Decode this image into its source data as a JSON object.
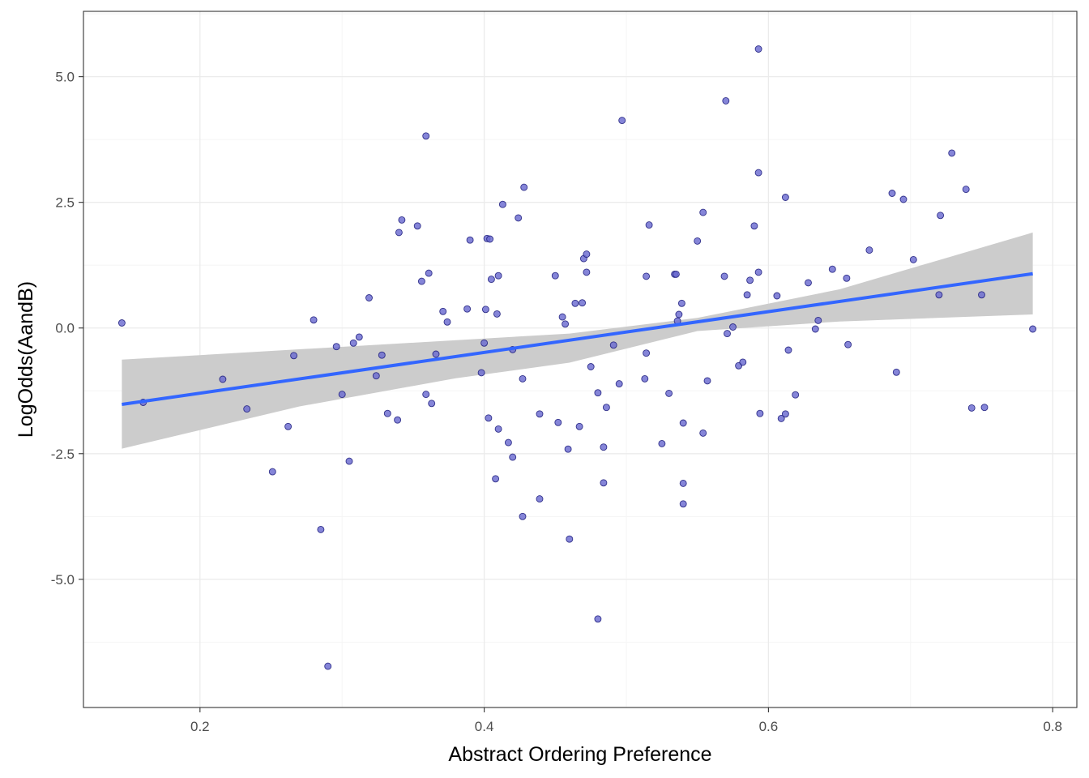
{
  "colors": {
    "background": "#ffffff",
    "panel_border": "#333333",
    "grid_major": "#ebebeb",
    "grid_minor": "#f5f5f5",
    "point_fill": "#6a6acf",
    "point_stroke": "#1a1a7a",
    "fit_line": "#3366ff",
    "ci_band": "#cccccc"
  },
  "chart_data": {
    "type": "scatter",
    "title": "",
    "xlabel": "Abstract Ordering Preference",
    "ylabel": "LogOdds(AandB)",
    "xlim": [
      0.118,
      0.817
    ],
    "ylim": [
      -7.55,
      6.3
    ],
    "x_ticks": [
      0.2,
      0.4,
      0.6,
      0.8
    ],
    "x_tick_labels": [
      "0.2",
      "0.4",
      "0.6",
      "0.8"
    ],
    "y_ticks": [
      -5.0,
      -2.5,
      0.0,
      2.5,
      5.0
    ],
    "y_tick_labels": [
      "-5.0",
      "-2.5",
      "0.0",
      "2.5",
      "5.0"
    ],
    "grid": true,
    "legend": "none",
    "smooth": {
      "method": "lm",
      "line": [
        [
          0.145,
          -1.52
        ],
        [
          0.786,
          1.08
        ]
      ],
      "ci_upper": [
        [
          0.145,
          -0.63
        ],
        [
          0.46,
          -0.11
        ],
        [
          0.55,
          0.2
        ],
        [
          0.65,
          0.77
        ],
        [
          0.786,
          1.9
        ]
      ],
      "ci_lower": [
        [
          0.145,
          -2.4
        ],
        [
          0.27,
          -1.56
        ],
        [
          0.38,
          -1.0
        ],
        [
          0.46,
          -0.69
        ],
        [
          0.55,
          -0.06
        ],
        [
          0.65,
          0.13
        ],
        [
          0.786,
          0.27
        ]
      ]
    },
    "points": [
      [
        0.145,
        0.1
      ],
      [
        0.16,
        -1.48
      ],
      [
        0.216,
        -1.02
      ],
      [
        0.233,
        -1.61
      ],
      [
        0.251,
        -2.86
      ],
      [
        0.262,
        -1.96
      ],
      [
        0.266,
        -0.55
      ],
      [
        0.28,
        0.16
      ],
      [
        0.285,
        -4.01
      ],
      [
        0.29,
        -6.73
      ],
      [
        0.296,
        -0.37
      ],
      [
        0.3,
        -1.32
      ],
      [
        0.305,
        -2.65
      ],
      [
        0.308,
        -0.3
      ],
      [
        0.312,
        -0.18
      ],
      [
        0.319,
        0.6
      ],
      [
        0.324,
        -0.95
      ],
      [
        0.328,
        -0.54
      ],
      [
        0.332,
        -1.7
      ],
      [
        0.339,
        -1.83
      ],
      [
        0.34,
        1.9
      ],
      [
        0.342,
        2.15
      ],
      [
        0.353,
        2.03
      ],
      [
        0.356,
        0.93
      ],
      [
        0.359,
        3.82
      ],
      [
        0.359,
        -1.32
      ],
      [
        0.361,
        1.09
      ],
      [
        0.363,
        -1.5
      ],
      [
        0.366,
        -0.52
      ],
      [
        0.371,
        0.33
      ],
      [
        0.374,
        0.12
      ],
      [
        0.388,
        0.38
      ],
      [
        0.39,
        1.75
      ],
      [
        0.398,
        -0.89
      ],
      [
        0.4,
        -0.3
      ],
      [
        0.401,
        0.37
      ],
      [
        0.402,
        1.78
      ],
      [
        0.403,
        -1.79
      ],
      [
        0.404,
        1.77
      ],
      [
        0.405,
        0.97
      ],
      [
        0.408,
        -3.0
      ],
      [
        0.409,
        0.28
      ],
      [
        0.41,
        1.04
      ],
      [
        0.41,
        -2.01
      ],
      [
        0.413,
        2.46
      ],
      [
        0.417,
        -2.28
      ],
      [
        0.42,
        -2.57
      ],
      [
        0.42,
        -0.43
      ],
      [
        0.424,
        2.19
      ],
      [
        0.427,
        -1.01
      ],
      [
        0.427,
        -3.75
      ],
      [
        0.428,
        2.8
      ],
      [
        0.439,
        -1.71
      ],
      [
        0.439,
        -3.4
      ],
      [
        0.45,
        1.04
      ],
      [
        0.452,
        -1.88
      ],
      [
        0.455,
        0.22
      ],
      [
        0.457,
        0.08
      ],
      [
        0.459,
        -2.41
      ],
      [
        0.46,
        -4.2
      ],
      [
        0.464,
        0.49
      ],
      [
        0.467,
        -1.96
      ],
      [
        0.469,
        0.5
      ],
      [
        0.47,
        1.38
      ],
      [
        0.472,
        1.47
      ],
      [
        0.472,
        1.11
      ],
      [
        0.475,
        -0.77
      ],
      [
        0.48,
        -1.29
      ],
      [
        0.48,
        -5.79
      ],
      [
        0.484,
        -2.37
      ],
      [
        0.484,
        -3.08
      ],
      [
        0.486,
        -1.58
      ],
      [
        0.491,
        -0.34
      ],
      [
        0.495,
        -1.11
      ],
      [
        0.497,
        4.13
      ],
      [
        0.513,
        -1.01
      ],
      [
        0.514,
        -0.5
      ],
      [
        0.514,
        1.03
      ],
      [
        0.516,
        2.05
      ],
      [
        0.525,
        -2.3
      ],
      [
        0.53,
        -1.3
      ],
      [
        0.534,
        1.07
      ],
      [
        0.535,
        1.07
      ],
      [
        0.536,
        0.14
      ],
      [
        0.537,
        0.27
      ],
      [
        0.539,
        0.49
      ],
      [
        0.54,
        -1.89
      ],
      [
        0.54,
        -3.09
      ],
      [
        0.54,
        -3.5
      ],
      [
        0.55,
        1.73
      ],
      [
        0.554,
        2.3
      ],
      [
        0.554,
        -2.09
      ],
      [
        0.557,
        -1.05
      ],
      [
        0.569,
        1.03
      ],
      [
        0.57,
        4.52
      ],
      [
        0.571,
        -0.11
      ],
      [
        0.575,
        0.02
      ],
      [
        0.579,
        -0.75
      ],
      [
        0.582,
        -0.68
      ],
      [
        0.585,
        0.66
      ],
      [
        0.587,
        0.95
      ],
      [
        0.59,
        2.03
      ],
      [
        0.593,
        5.55
      ],
      [
        0.593,
        1.11
      ],
      [
        0.593,
        3.09
      ],
      [
        0.594,
        -1.7
      ],
      [
        0.606,
        0.64
      ],
      [
        0.609,
        -1.8
      ],
      [
        0.612,
        -1.71
      ],
      [
        0.612,
        2.6
      ],
      [
        0.614,
        -0.44
      ],
      [
        0.619,
        -1.33
      ],
      [
        0.628,
        0.9
      ],
      [
        0.633,
        -0.02
      ],
      [
        0.635,
        0.15
      ],
      [
        0.645,
        1.17
      ],
      [
        0.655,
        0.99
      ],
      [
        0.656,
        -0.33
      ],
      [
        0.671,
        1.55
      ],
      [
        0.687,
        2.68
      ],
      [
        0.69,
        -0.88
      ],
      [
        0.695,
        2.56
      ],
      [
        0.702,
        1.36
      ],
      [
        0.72,
        0.66
      ],
      [
        0.721,
        2.24
      ],
      [
        0.729,
        3.48
      ],
      [
        0.739,
        2.76
      ],
      [
        0.743,
        -1.59
      ],
      [
        0.75,
        0.66
      ],
      [
        0.752,
        -1.58
      ],
      [
        0.786,
        -0.02
      ]
    ]
  }
}
